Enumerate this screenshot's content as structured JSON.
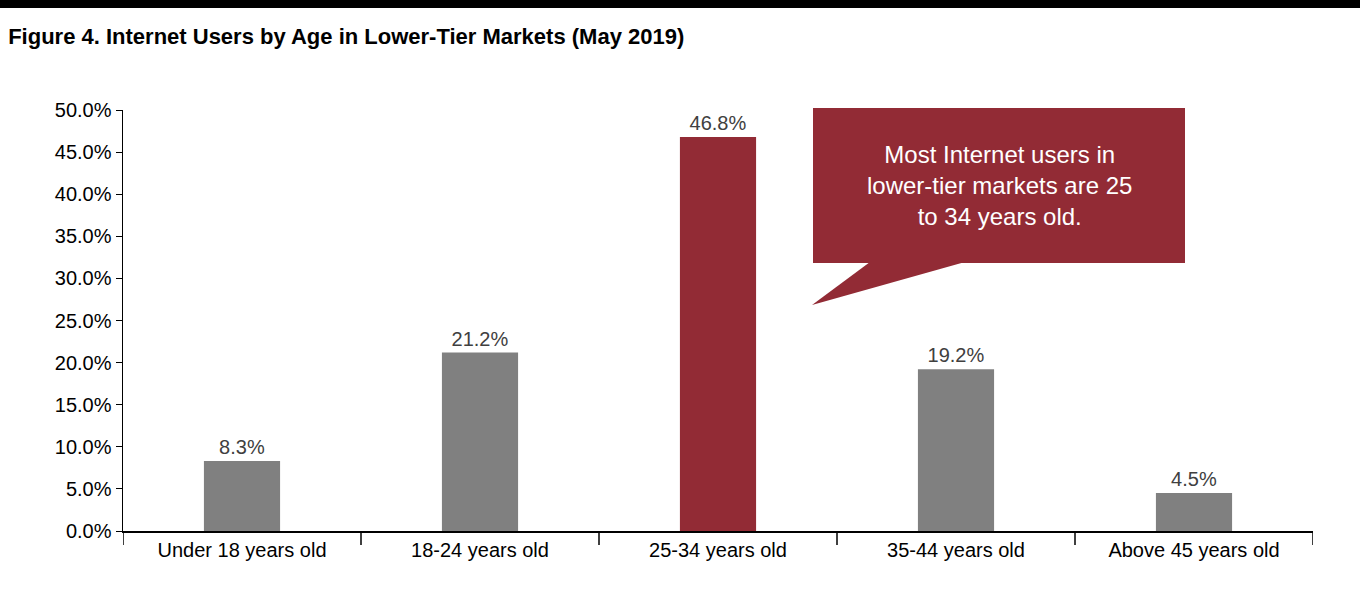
{
  "chart_data": {
    "type": "bar",
    "title": "Figure 4. Internet Users by Age in Lower-Tier Markets (May 2019)",
    "categories": [
      "Under 18 years old",
      "18-24 years old",
      "25-34 years old",
      "35-44 years old",
      "Above 45 years old"
    ],
    "values": [
      8.3,
      21.2,
      46.8,
      19.2,
      4.5
    ],
    "value_labels": [
      "8.3%",
      "21.2%",
      "46.8%",
      "19.2%",
      "4.5%"
    ],
    "colors": [
      "#808080",
      "#808080",
      "#922b35",
      "#808080",
      "#808080"
    ],
    "ylim": [
      0,
      50
    ],
    "yticks": [
      {
        "value": 0,
        "label": "0.0%"
      },
      {
        "value": 5,
        "label": "5.0%"
      },
      {
        "value": 10,
        "label": "10.0%"
      },
      {
        "value": 15,
        "label": "15.0%"
      },
      {
        "value": 20,
        "label": "20.0%"
      },
      {
        "value": 25,
        "label": "25.0%"
      },
      {
        "value": 30,
        "label": "30.0%"
      },
      {
        "value": 35,
        "label": "35.0%"
      },
      {
        "value": 40,
        "label": "40.0%"
      },
      {
        "value": 45,
        "label": "45.0%"
      },
      {
        "value": 50,
        "label": "50.0%"
      }
    ],
    "grid": false,
    "data_labels": true,
    "annotations": [
      {
        "text": "Most Internet users in\nlower-tier markets are 25\nto 34 years old.",
        "color": "#922b35"
      }
    ]
  }
}
